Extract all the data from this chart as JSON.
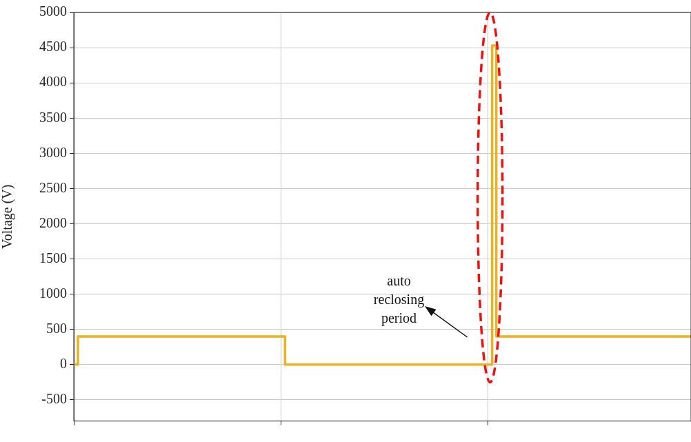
{
  "chart_data": {
    "type": "step",
    "ylabel": "Voltage (V)",
    "categories": [
      null,
      null,
      null,
      null,
      null,
      null,
      null,
      null,
      null,
      null,
      null,
      null,
      null,
      null,
      null,
      null,
      null,
      null,
      null,
      null,
      null,
      null,
      null,
      null,
      null,
      null,
      null,
      null,
      null,
      null,
      null,
      null,
      null,
      null,
      null,
      null,
      null,
      null,
      null,
      null,
      null,
      null,
      null,
      null,
      null,
      null,
      null,
      null,
      null,
      null,
      null,
      null,
      null,
      null,
      null,
      null,
      null,
      null,
      null,
      null,
      null,
      null,
      null,
      null,
      null,
      null,
      null,
      null,
      null,
      null,
      null,
      null,
      null,
      null,
      null,
      null,
      null,
      null,
      null,
      null,
      null,
      null,
      null,
      null,
      null,
      null,
      null,
      null,
      null,
      null,
      null,
      null,
      null,
      null,
      null,
      null,
      null,
      null,
      null,
      null,
      null,
      null,
      null,
      null,
      null,
      null,
      null,
      null,
      null,
      null,
      null,
      null,
      null,
      null,
      null,
      null,
      null,
      null,
      null,
      null,
      null,
      null,
      null,
      null,
      null,
      null,
      null,
      null,
      null,
      null,
      null,
      null,
      null,
      null,
      null,
      null,
      null,
      null,
      null,
      null,
      null,
      null,
      null,
      null,
      null,
      null,
      null,
      null,
      null,
      null
    ],
    "series": [
      {
        "color": "#edb120",
        "values": [
          0,
          400,
          400,
          400,
          400,
          400,
          400,
          400,
          400,
          400,
          400,
          400,
          400,
          400,
          400,
          400,
          400,
          400,
          400,
          400,
          400,
          400,
          400,
          400,
          400,
          400,
          400,
          400,
          400,
          400,
          400,
          400,
          400,
          400,
          400,
          400,
          400,
          400,
          400,
          400,
          400,
          400,
          400,
          400,
          400,
          400,
          400,
          400,
          400,
          400,
          400,
          0,
          0,
          0,
          0,
          0,
          0,
          0,
          0,
          0,
          0,
          0,
          0,
          0,
          0,
          0,
          0,
          0,
          0,
          0,
          0,
          0,
          0,
          0,
          0,
          0,
          0,
          0,
          0,
          0,
          0,
          0,
          0,
          0,
          0,
          0,
          0,
          0,
          0,
          0,
          0,
          0,
          0,
          0,
          0,
          0,
          0,
          0,
          0,
          0,
          0,
          4530,
          400,
          400,
          400,
          400,
          400,
          400,
          400,
          400,
          400,
          400,
          400,
          400,
          400,
          400,
          400,
          400,
          400,
          400,
          400,
          400,
          400,
          400,
          400,
          400,
          400,
          400,
          400,
          400,
          400,
          400,
          400,
          400,
          400,
          400,
          400,
          400,
          400,
          400,
          400,
          400,
          400,
          400,
          400,
          400,
          400,
          400,
          400,
          400
        ]
      }
    ],
    "ylim": [
      -800,
      5000
    ],
    "yticks": [
      -500,
      0,
      500,
      1000,
      1500,
      2000,
      2500,
      3000,
      3500,
      4000,
      4500,
      5000
    ],
    "grid": true,
    "legend": false,
    "marker": "none",
    "line_style": "solid",
    "annotations": [
      "auto\nreclosing\nperiod"
    ]
  }
}
